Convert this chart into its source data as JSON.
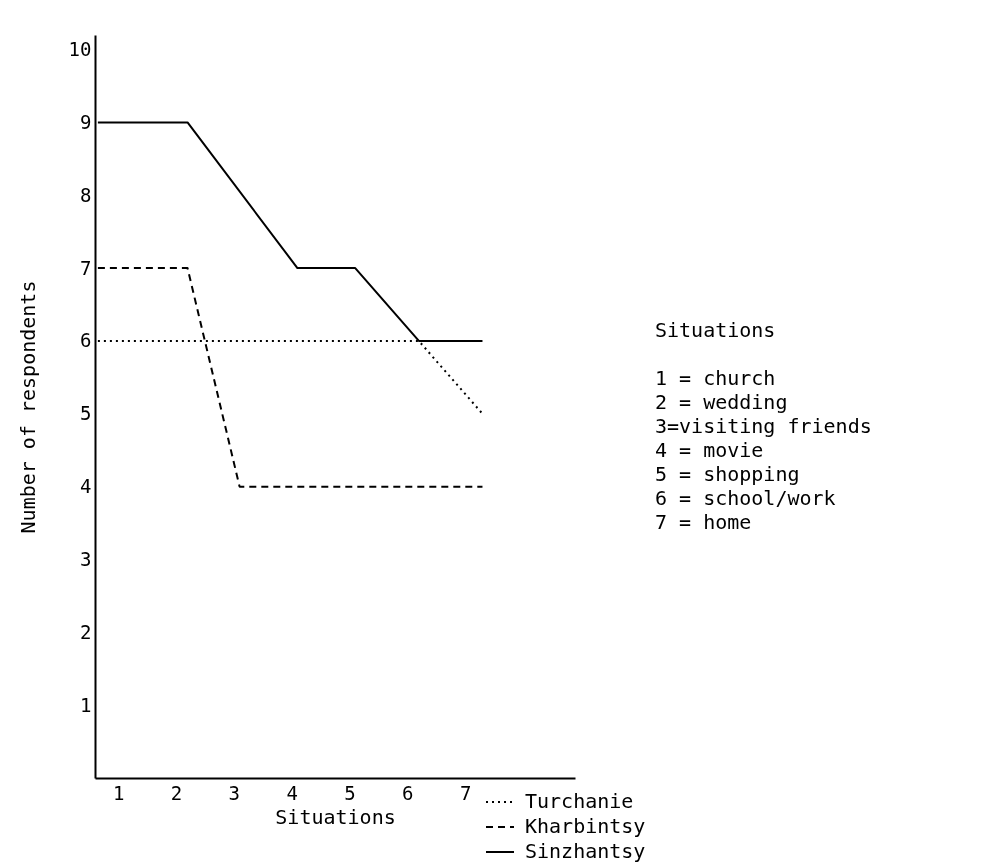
{
  "chart_data": {
    "type": "line",
    "xlabel": "Situations",
    "ylabel": "Number of respondents",
    "xlim": [
      0.6,
      8.9
    ],
    "ylim": [
      0,
      10.2
    ],
    "xticks": [
      1,
      2,
      3,
      4,
      5,
      6,
      7
    ],
    "yticks": [
      1,
      2,
      3,
      4,
      5,
      6,
      7,
      8,
      9,
      10
    ],
    "grid": false,
    "legend": "bottom",
    "marker": "none",
    "series": [
      {
        "name": "Turchanie",
        "color": "#000000",
        "line_style": "dotted",
        "x": [
          0.65,
          6.2,
          7.3
        ],
        "values": [
          6,
          6,
          5
        ]
      },
      {
        "name": "Kharbintsy",
        "color": "#000000",
        "line_style": "dashed",
        "x": [
          0.65,
          2.2,
          3.1,
          7.3
        ],
        "values": [
          7,
          7,
          4,
          4
        ]
      },
      {
        "name": "Sinzhantsy",
        "color": "#000000",
        "line_style": "solid",
        "x": [
          0.65,
          2.2,
          4.1,
          5.1,
          6.2,
          7.3
        ],
        "values": [
          9,
          9,
          7,
          7,
          6,
          6
        ]
      }
    ],
    "annotations": [
      "Situations",
      "1 = church",
      "2 = wedding",
      "3=visiting friends",
      "4 = movie",
      "5 = shopping",
      "6 = school/work",
      "7 = home"
    ]
  }
}
